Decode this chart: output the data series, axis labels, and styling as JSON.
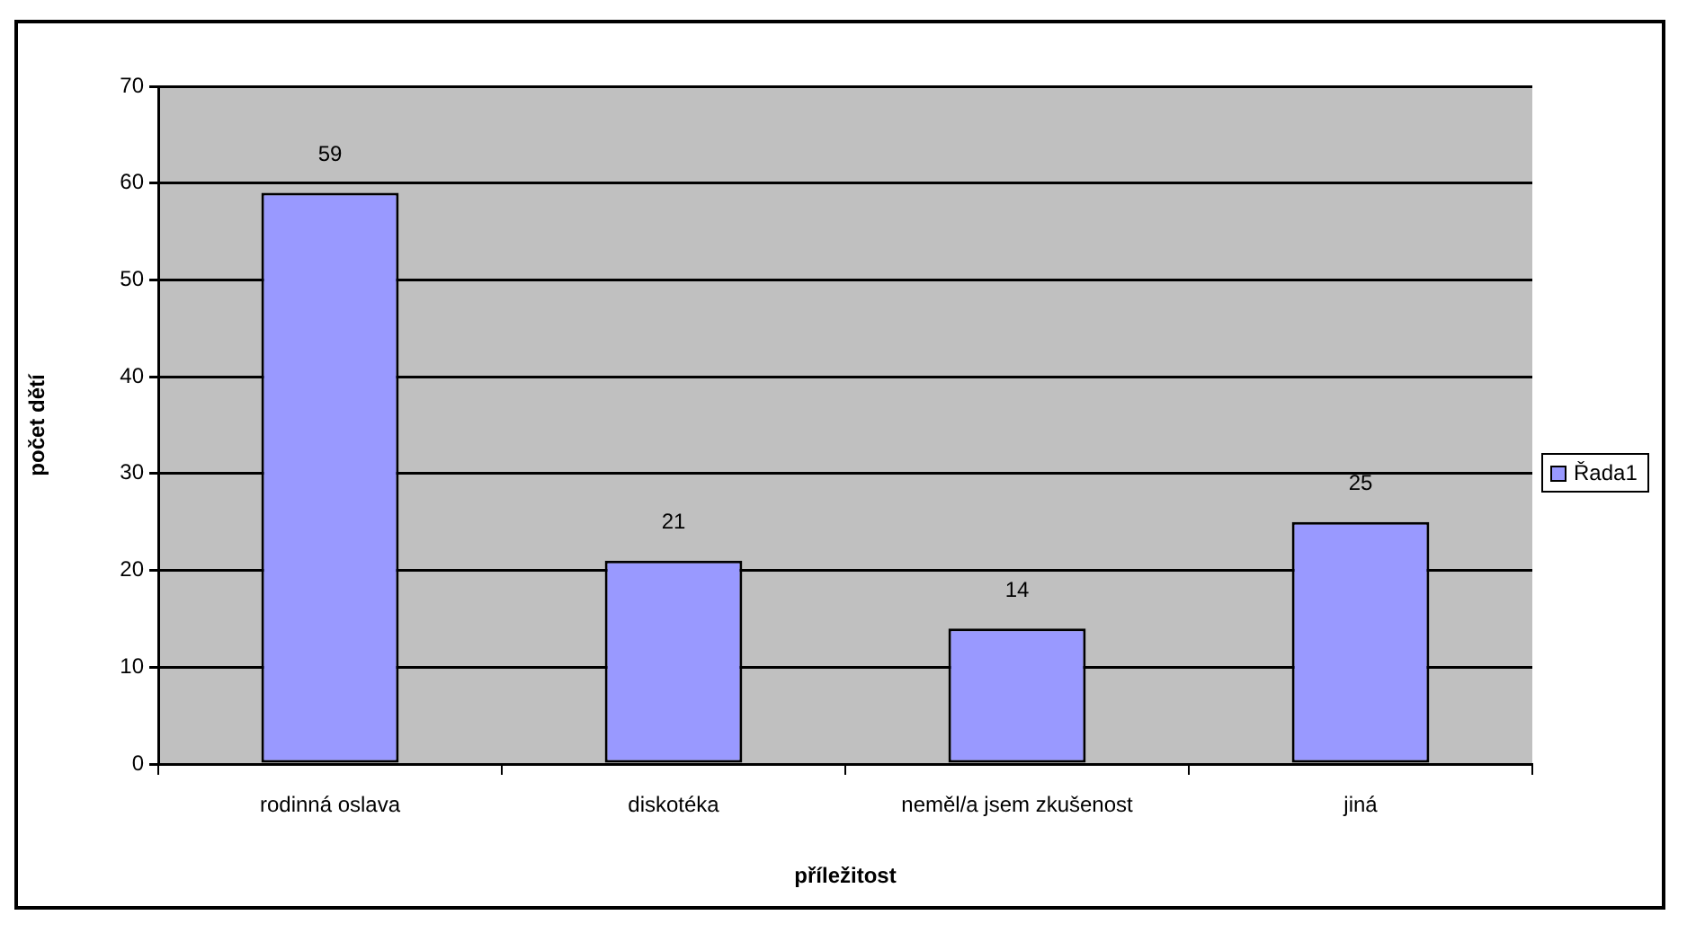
{
  "chart_data": {
    "type": "bar",
    "xlabel": "příležitost",
    "ylabel": "počet dětí",
    "categories": [
      "rodinná oslava",
      "diskotéka",
      "neměl/a jsem zkušenost",
      "jiná"
    ],
    "series": [
      {
        "name": "Řada1",
        "color": "#9999ff",
        "values": [
          59,
          21,
          14,
          25
        ]
      }
    ],
    "ylim": [
      0,
      70
    ],
    "yticks": [
      0,
      10,
      20,
      30,
      40,
      50,
      60,
      70
    ],
    "grid": "y",
    "legend": "right",
    "data_labels": true
  }
}
